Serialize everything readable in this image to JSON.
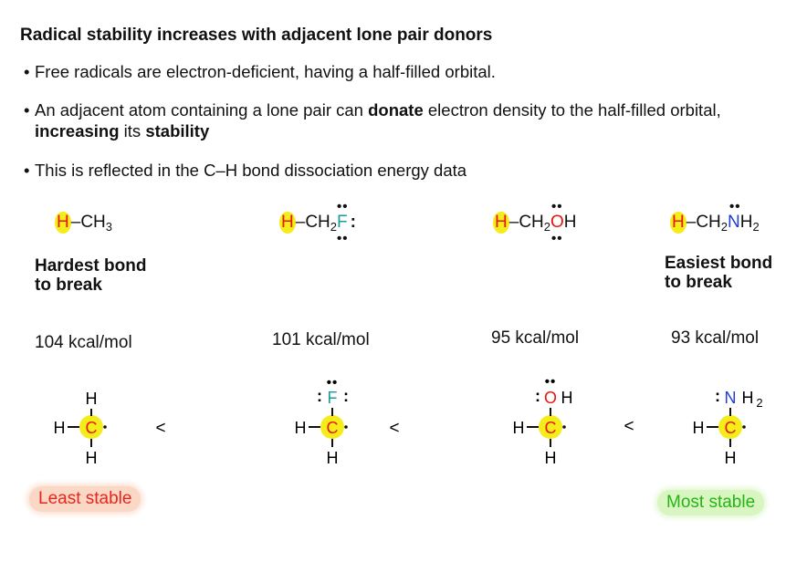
{
  "title": "Radical stability increases with adjacent lone pair donors",
  "bullet_char": "•",
  "bullets": {
    "b1": "Free radicals are electron-deficient, having a half-filled orbital.",
    "b2_a": "An adjacent atom containing a lone pair can ",
    "b2_donate": "donate",
    "b2_b": " electron density to the half-filled orbital, ",
    "b2_increasing": "increasing",
    "b2_c": " its ",
    "b2_stability": "stability",
    "b3": "This is reflected in the C–H bond dissociation energy data"
  },
  "molecules": [
    {
      "h": "H",
      "bond": "–",
      "rest1": "CH",
      "sub1": "3",
      "hetero": "",
      "rest2": "",
      "sub2": "",
      "lone_top": "",
      "lone_bottom": "",
      "lone_right": ""
    },
    {
      "h": "H",
      "bond": "–",
      "rest1": "CH",
      "sub1": "2",
      "hetero": "F",
      "rest2": "",
      "sub2": "",
      "lone_top": "••",
      "lone_bottom": "••",
      "lone_right": ":"
    },
    {
      "h": "H",
      "bond": "–",
      "rest1": "CH",
      "sub1": "2",
      "hetero": "O",
      "rest2": "H",
      "sub2": "",
      "lone_top": "••",
      "lone_bottom": "••",
      "lone_right": ""
    },
    {
      "h": "H",
      "bond": "–",
      "rest1": "CH",
      "sub1": "2",
      "hetero": "N",
      "rest2": "H",
      "sub2": "2",
      "lone_top": "••",
      "lone_bottom": "",
      "lone_right": ""
    }
  ],
  "labels": {
    "hardest_1": "Hardest bond",
    "hardest_2": "to break",
    "easiest_1": "Easiest bond",
    "easiest_2": "to break"
  },
  "energies": [
    "104 kcal/mol",
    "101 kcal/mol",
    "95 kcal/mol",
    "93 kcal/mol"
  ],
  "radicals": [
    {
      "top": "H",
      "top_sub": "",
      "left": "H",
      "center": "C",
      "bottom": "H",
      "lone_top": "",
      "lone_left": ""
    },
    {
      "top": "F",
      "top_sub": "",
      "left": "H",
      "center": "C",
      "bottom": "H",
      "lone_top": "••",
      "lone_left": ":",
      "lone_right": ":"
    },
    {
      "top": "O",
      "top_after": "H",
      "top_sub": "",
      "left": "H",
      "center": "C",
      "bottom": "H",
      "lone_top": "••",
      "lone_left": ":"
    },
    {
      "top": "N",
      "top_after": "H",
      "top_sub": "2",
      "left": "H",
      "center": "C",
      "bottom": "H",
      "lone_top": "",
      "lone_left": ":"
    }
  ],
  "less_than": "<",
  "stability_labels": {
    "least": "Least stable",
    "most": "Most stable"
  },
  "colors": {
    "highlight": "#f5ec1b",
    "hydrogen": "#e8170c",
    "fluorine": "#1a9c9c",
    "oxygen": "#e8170c",
    "nitrogen": "#1f3cd8",
    "least": "#e8271c",
    "most": "#26b514"
  }
}
